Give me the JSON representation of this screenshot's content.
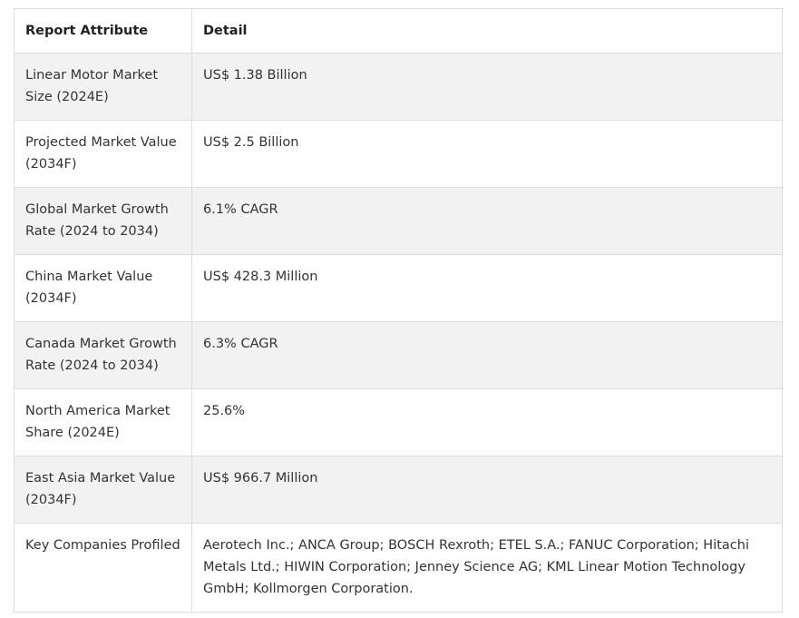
{
  "table": {
    "headers": [
      "Report Attribute",
      "Detail"
    ],
    "rows": [
      {
        "attribute": "Linear Motor Market Size (2024E)",
        "detail": "US$ 1.38 Billion"
      },
      {
        "attribute": "Projected Market Value (2034F)",
        "detail": "US$ 2.5 Billion"
      },
      {
        "attribute": "Global Market Growth Rate (2024 to 2034)",
        "detail": "6.1% CAGR"
      },
      {
        "attribute": "China Market Value (2034F)",
        "detail": "US$ 428.3 Million"
      },
      {
        "attribute": "Canada Market Growth Rate (2024 to 2034)",
        "detail": "6.3% CAGR"
      },
      {
        "attribute": "North America Market Share (2024E)",
        "detail": "25.6%"
      },
      {
        "attribute": "East Asia Market Value (2034F)",
        "detail": "US$ 966.7 Million"
      },
      {
        "attribute": "Key Companies Profiled",
        "detail": "Aerotech Inc.; ANCA Group; BOSCH Rexroth; ETEL S.A.; FANUC Corporation; Hitachi Metals Ltd.; HIWIN Corporation; Jenney Science AG; KML Linear Motion Technology GmbH; Kollmorgen Corporation."
      }
    ]
  }
}
